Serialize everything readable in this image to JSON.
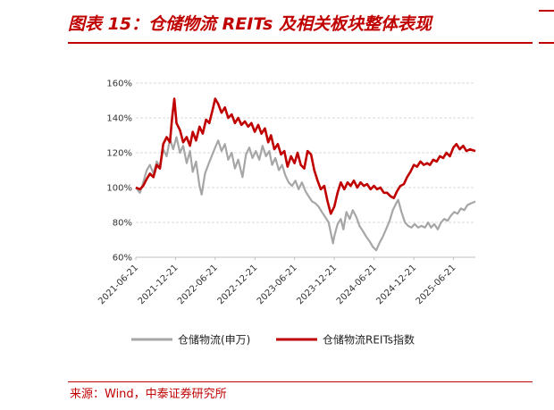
{
  "header": {
    "title": "图表 15：仓储物流 REITs 及相关板块整体表现"
  },
  "footer": {
    "source": "来源：Wind，中泰证券研究所"
  },
  "colors": {
    "accent": "#c00000",
    "series_red": "#c00000",
    "series_gray": "#a6a6a6",
    "grid": "#d9d9d9"
  },
  "chart_data": {
    "type": "line",
    "title": "",
    "xlabel": "",
    "ylabel": "",
    "ylim": [
      60,
      160
    ],
    "xlim": [
      "2021-06-21",
      "2025-09-30"
    ],
    "y_ticks": [
      "60%",
      "80%",
      "100%",
      "120%",
      "140%",
      "160%"
    ],
    "x_ticks": [
      "2021-06-21",
      "2021-12-21",
      "2022-06-21",
      "2022-12-21",
      "2023-06-21",
      "2023-12-21",
      "2024-06-21",
      "2024-12-21",
      "2025-06-21"
    ],
    "grid": true,
    "legend": "bottom",
    "series": [
      {
        "name": "仓储物流(申万)",
        "color": "#a6a6a6",
        "points": [
          [
            "2021-06-21",
            100
          ],
          [
            "2021-07-10",
            97
          ],
          [
            "2021-07-25",
            103
          ],
          [
            "2021-08-10",
            110
          ],
          [
            "2021-08-25",
            113
          ],
          [
            "2021-09-10",
            108
          ],
          [
            "2021-09-25",
            115
          ],
          [
            "2021-10-10",
            112
          ],
          [
            "2021-10-25",
            122
          ],
          [
            "2021-11-10",
            118
          ],
          [
            "2021-11-25",
            128
          ],
          [
            "2021-12-10",
            122
          ],
          [
            "2021-12-25",
            129
          ],
          [
            "2022-01-10",
            120
          ],
          [
            "2022-01-25",
            124
          ],
          [
            "2022-02-10",
            114
          ],
          [
            "2022-02-25",
            121
          ],
          [
            "2022-03-10",
            109
          ],
          [
            "2022-03-25",
            115
          ],
          [
            "2022-04-10",
            101
          ],
          [
            "2022-04-20",
            96
          ],
          [
            "2022-05-05",
            108
          ],
          [
            "2022-05-20",
            113
          ],
          [
            "2022-06-05",
            118
          ],
          [
            "2022-06-21",
            123
          ],
          [
            "2022-07-05",
            127
          ],
          [
            "2022-07-20",
            121
          ],
          [
            "2022-08-05",
            125
          ],
          [
            "2022-08-20",
            116
          ],
          [
            "2022-09-05",
            120
          ],
          [
            "2022-09-20",
            111
          ],
          [
            "2022-10-05",
            116
          ],
          [
            "2022-10-25",
            106
          ],
          [
            "2022-11-10",
            119
          ],
          [
            "2022-11-25",
            123
          ],
          [
            "2022-12-10",
            117
          ],
          [
            "2022-12-25",
            121
          ],
          [
            "2023-01-10",
            116
          ],
          [
            "2023-01-25",
            124
          ],
          [
            "2023-02-10",
            118
          ],
          [
            "2023-02-25",
            121
          ],
          [
            "2023-03-10",
            113
          ],
          [
            "2023-03-25",
            117
          ],
          [
            "2023-04-10",
            110
          ],
          [
            "2023-04-25",
            113
          ],
          [
            "2023-05-10",
            107
          ],
          [
            "2023-05-25",
            103
          ],
          [
            "2023-06-10",
            101
          ],
          [
            "2023-06-25",
            104
          ],
          [
            "2023-07-10",
            99
          ],
          [
            "2023-07-25",
            103
          ],
          [
            "2023-08-10",
            98
          ],
          [
            "2023-08-25",
            95
          ],
          [
            "2023-09-10",
            92
          ],
          [
            "2023-09-25",
            91
          ],
          [
            "2023-10-10",
            89
          ],
          [
            "2023-10-25",
            86
          ],
          [
            "2023-11-10",
            83
          ],
          [
            "2023-11-25",
            80
          ],
          [
            "2023-12-05",
            74
          ],
          [
            "2023-12-15",
            68
          ],
          [
            "2023-12-21",
            72
          ],
          [
            "2024-01-05",
            79
          ],
          [
            "2024-01-20",
            82
          ],
          [
            "2024-02-01",
            76
          ],
          [
            "2024-02-15",
            86
          ],
          [
            "2024-03-01",
            82
          ],
          [
            "2024-03-15",
            87
          ],
          [
            "2024-04-01",
            83
          ],
          [
            "2024-04-15",
            78
          ],
          [
            "2024-05-01",
            75
          ],
          [
            "2024-05-15",
            72
          ],
          [
            "2024-06-01",
            69
          ],
          [
            "2024-06-15",
            66
          ],
          [
            "2024-07-01",
            64
          ],
          [
            "2024-07-15",
            68
          ],
          [
            "2024-08-01",
            72
          ],
          [
            "2024-08-15",
            76
          ],
          [
            "2024-09-01",
            81
          ],
          [
            "2024-09-15",
            87
          ],
          [
            "2024-10-01",
            91
          ],
          [
            "2024-10-10",
            93
          ],
          [
            "2024-10-25",
            86
          ],
          [
            "2024-11-10",
            80
          ],
          [
            "2024-11-25",
            78
          ],
          [
            "2024-12-10",
            77
          ],
          [
            "2024-12-25",
            79
          ],
          [
            "2025-01-10",
            77
          ],
          [
            "2025-01-25",
            78
          ],
          [
            "2025-02-10",
            77
          ],
          [
            "2025-02-25",
            80
          ],
          [
            "2025-03-10",
            77
          ],
          [
            "2025-03-25",
            79
          ],
          [
            "2025-04-10",
            76
          ],
          [
            "2025-04-25",
            80
          ],
          [
            "2025-05-10",
            82
          ],
          [
            "2025-05-25",
            81
          ],
          [
            "2025-06-10",
            84
          ],
          [
            "2025-06-25",
            86
          ],
          [
            "2025-07-10",
            85
          ],
          [
            "2025-07-25",
            88
          ],
          [
            "2025-08-10",
            87
          ],
          [
            "2025-08-25",
            90
          ],
          [
            "2025-09-10",
            91
          ],
          [
            "2025-09-30",
            92
          ]
        ]
      },
      {
        "name": "仓储物流REITs指数",
        "color": "#c00000",
        "points": [
          [
            "2021-06-21",
            100
          ],
          [
            "2021-07-10",
            99
          ],
          [
            "2021-07-25",
            101
          ],
          [
            "2021-08-10",
            105
          ],
          [
            "2021-08-25",
            108
          ],
          [
            "2021-09-10",
            106
          ],
          [
            "2021-09-25",
            113
          ],
          [
            "2021-10-10",
            111
          ],
          [
            "2021-10-25",
            125
          ],
          [
            "2021-11-10",
            129
          ],
          [
            "2021-11-25",
            126
          ],
          [
            "2021-12-05",
            140
          ],
          [
            "2021-12-15",
            151
          ],
          [
            "2021-12-25",
            137
          ],
          [
            "2022-01-10",
            133
          ],
          [
            "2022-01-25",
            126
          ],
          [
            "2022-02-10",
            129
          ],
          [
            "2022-02-25",
            124
          ],
          [
            "2022-03-10",
            132
          ],
          [
            "2022-03-25",
            127
          ],
          [
            "2022-04-10",
            135
          ],
          [
            "2022-04-25",
            131
          ],
          [
            "2022-05-10",
            139
          ],
          [
            "2022-05-25",
            137
          ],
          [
            "2022-06-10",
            145
          ],
          [
            "2022-06-21",
            151
          ],
          [
            "2022-07-05",
            148
          ],
          [
            "2022-07-20",
            143
          ],
          [
            "2022-08-05",
            146
          ],
          [
            "2022-08-20",
            140
          ],
          [
            "2022-09-05",
            142
          ],
          [
            "2022-09-20",
            137
          ],
          [
            "2022-10-05",
            140
          ],
          [
            "2022-10-20",
            136
          ],
          [
            "2022-11-05",
            138
          ],
          [
            "2022-11-20",
            135
          ],
          [
            "2022-12-05",
            137
          ],
          [
            "2022-12-20",
            132
          ],
          [
            "2023-01-05",
            136
          ],
          [
            "2023-01-20",
            131
          ],
          [
            "2023-02-05",
            134
          ],
          [
            "2023-02-20",
            126
          ],
          [
            "2023-03-05",
            130
          ],
          [
            "2023-03-20",
            122
          ],
          [
            "2023-04-05",
            125
          ],
          [
            "2023-04-20",
            119
          ],
          [
            "2023-05-05",
            121
          ],
          [
            "2023-05-20",
            112
          ],
          [
            "2023-06-05",
            118
          ],
          [
            "2023-06-21",
            114
          ],
          [
            "2023-07-05",
            120
          ],
          [
            "2023-07-20",
            113
          ],
          [
            "2023-08-05",
            111
          ],
          [
            "2023-08-20",
            121
          ],
          [
            "2023-09-05",
            119
          ],
          [
            "2023-09-20",
            110
          ],
          [
            "2023-10-05",
            104
          ],
          [
            "2023-10-20",
            99
          ],
          [
            "2023-11-05",
            101
          ],
          [
            "2023-11-20",
            92
          ],
          [
            "2023-12-05",
            85
          ],
          [
            "2023-12-21",
            89
          ],
          [
            "2024-01-05",
            97
          ],
          [
            "2024-01-20",
            103
          ],
          [
            "2024-02-05",
            99
          ],
          [
            "2024-02-20",
            103
          ],
          [
            "2024-03-05",
            101
          ],
          [
            "2024-03-20",
            104
          ],
          [
            "2024-04-05",
            100
          ],
          [
            "2024-04-20",
            103
          ],
          [
            "2024-05-05",
            101
          ],
          [
            "2024-05-20",
            102
          ],
          [
            "2024-06-05",
            99
          ],
          [
            "2024-06-21",
            101
          ],
          [
            "2024-07-05",
            99
          ],
          [
            "2024-07-20",
            100
          ],
          [
            "2024-08-05",
            97
          ],
          [
            "2024-08-20",
            97
          ],
          [
            "2024-09-05",
            95
          ],
          [
            "2024-09-20",
            94
          ],
          [
            "2024-10-05",
            98
          ],
          [
            "2024-10-20",
            101
          ],
          [
            "2024-11-05",
            102
          ],
          [
            "2024-11-20",
            106
          ],
          [
            "2024-12-05",
            109
          ],
          [
            "2024-12-21",
            113
          ],
          [
            "2025-01-05",
            112
          ],
          [
            "2025-01-20",
            115
          ],
          [
            "2025-02-05",
            113
          ],
          [
            "2025-02-20",
            114
          ],
          [
            "2025-03-05",
            113
          ],
          [
            "2025-03-20",
            116
          ],
          [
            "2025-04-05",
            115
          ],
          [
            "2025-04-20",
            118
          ],
          [
            "2025-05-05",
            117
          ],
          [
            "2025-05-20",
            120
          ],
          [
            "2025-06-05",
            118
          ],
          [
            "2025-06-21",
            123
          ],
          [
            "2025-07-05",
            125
          ],
          [
            "2025-07-20",
            122
          ],
          [
            "2025-08-05",
            124
          ],
          [
            "2025-08-20",
            121
          ],
          [
            "2025-09-05",
            122
          ],
          [
            "2025-09-30",
            121
          ]
        ]
      }
    ]
  }
}
